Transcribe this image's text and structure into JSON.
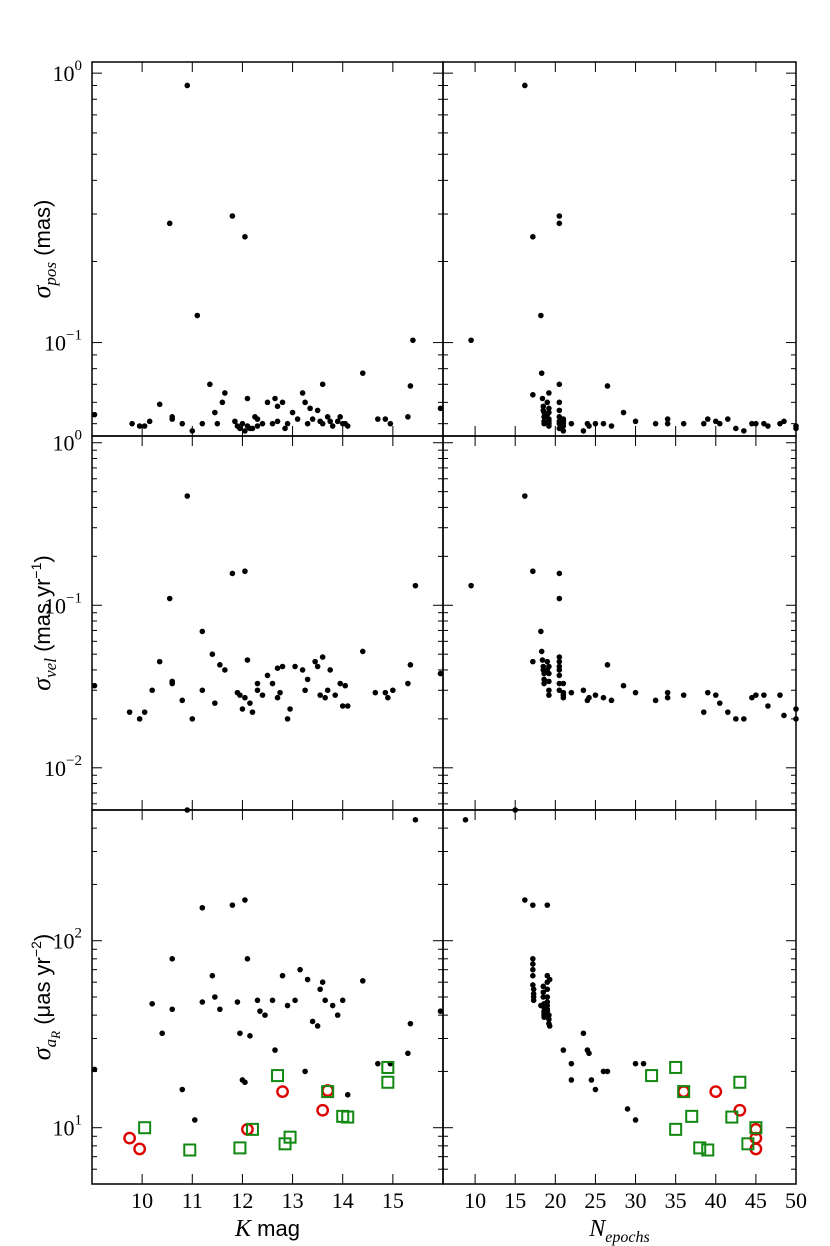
{
  "chart_data": [
    {
      "id": "pos_vs_kmag",
      "type": "scatter",
      "ylabel_symbol": "σ",
      "ylabel_sub": "pos",
      "ylabel_unit": " (mas)",
      "xlabel": "",
      "ylim": [
        0.045,
        1.1
      ],
      "yscale": "log",
      "xlim": [
        9.0,
        16.0
      ],
      "ytick_labels": [
        {
          "value": 1,
          "base": "10",
          "exp": "0"
        },
        {
          "value": 0.1,
          "base": "10",
          "exp": "−1"
        }
      ],
      "series": [
        {
          "style": "dot",
          "color": "#000000",
          "x": [
            9.05,
            9.8,
            9.95,
            10.05,
            10.15,
            10.35,
            10.55,
            10.6,
            10.6,
            10.8,
            10.9,
            11.0,
            11.1,
            11.2,
            11.35,
            11.45,
            11.5,
            11.6,
            11.65,
            11.8,
            11.85,
            11.9,
            11.95,
            12.0,
            12.05,
            12.05,
            12.1,
            12.1,
            12.15,
            12.2,
            12.25,
            12.3,
            12.3,
            12.4,
            12.5,
            12.6,
            12.65,
            12.7,
            12.7,
            12.8,
            12.85,
            12.9,
            13.0,
            13.1,
            13.2,
            13.25,
            13.3,
            13.35,
            13.4,
            13.5,
            13.55,
            13.6,
            13.6,
            13.7,
            13.75,
            13.8,
            13.9,
            13.95,
            14.0,
            14.05,
            14.1,
            14.4,
            14.7,
            14.85,
            14.95,
            15.3,
            15.35,
            15.4,
            15.95
          ],
          "y": [
            0.054,
            0.05,
            0.049,
            0.049,
            0.051,
            0.059,
            0.277,
            0.053,
            0.052,
            0.05,
            0.9,
            0.047,
            0.126,
            0.05,
            0.07,
            0.055,
            0.05,
            0.06,
            0.065,
            0.295,
            0.051,
            0.049,
            0.048,
            0.05,
            0.247,
            0.047,
            0.062,
            0.049,
            0.048,
            0.048,
            0.053,
            0.052,
            0.049,
            0.05,
            0.06,
            0.05,
            0.062,
            0.058,
            0.051,
            0.06,
            0.048,
            0.05,
            0.055,
            0.052,
            0.065,
            0.06,
            0.05,
            0.057,
            0.052,
            0.056,
            0.051,
            0.07,
            0.05,
            0.053,
            0.051,
            0.049,
            0.051,
            0.053,
            0.05,
            0.05,
            0.049,
            0.077,
            0.052,
            0.052,
            0.05,
            0.053,
            0.069,
            0.102,
            0.057
          ]
        }
      ]
    },
    {
      "id": "pos_vs_nepochs",
      "type": "scatter",
      "ylim": [
        0.045,
        1.1
      ],
      "yscale": "log",
      "xlim": [
        6.0,
        50.0
      ],
      "series": [
        {
          "style": "dot",
          "color": "#000000",
          "x": [
            9.5,
            16.2,
            17.2,
            17.2,
            18.2,
            18.3,
            18.4,
            18.5,
            18.5,
            18.6,
            18.6,
            18.6,
            18.6,
            19.0,
            19.0,
            19.2,
            19.2,
            19.2,
            19.2,
            19.2,
            19.2,
            19.2,
            20.5,
            20.5,
            20.5,
            20.5,
            20.5,
            20.5,
            20.5,
            20.5,
            20.5,
            21.0,
            21.0,
            21.0,
            21.0,
            21.0,
            22.0,
            23.5,
            24.0,
            24.2,
            25.0,
            26.0,
            26.5,
            27.0,
            28.5,
            30.0,
            32.5,
            34.0,
            34.0,
            36.0,
            38.5,
            39.0,
            40.0,
            40.5,
            41.5,
            42.5,
            43.5,
            44.5,
            45.0,
            46.0,
            46.5,
            48.0,
            48.5,
            50.0,
            50.0
          ],
          "y": [
            0.102,
            0.9,
            0.247,
            0.064,
            0.126,
            0.077,
            0.062,
            0.058,
            0.056,
            0.055,
            0.053,
            0.051,
            0.05,
            0.06,
            0.054,
            0.065,
            0.057,
            0.055,
            0.052,
            0.051,
            0.05,
            0.049,
            0.295,
            0.277,
            0.07,
            0.06,
            0.056,
            0.053,
            0.051,
            0.05,
            0.048,
            0.052,
            0.051,
            0.05,
            0.049,
            0.047,
            0.05,
            0.047,
            0.05,
            0.049,
            0.05,
            0.05,
            0.069,
            0.049,
            0.055,
            0.051,
            0.05,
            0.05,
            0.052,
            0.05,
            0.05,
            0.052,
            0.051,
            0.05,
            0.052,
            0.048,
            0.047,
            0.05,
            0.05,
            0.05,
            0.049,
            0.05,
            0.051,
            0.049,
            0.048
          ]
        }
      ]
    },
    {
      "id": "vel_vs_kmag",
      "type": "scatter",
      "ylabel_symbol": "σ",
      "ylabel_sub": "vel",
      "ylabel_unit": " (mas yr",
      "ylabel_unit_exp": "−1",
      "ylabel_unit_end": ")",
      "ylim": [
        0.0055,
        1.1
      ],
      "yscale": "log",
      "xlim": [
        9.0,
        16.0
      ],
      "ytick_labels": [
        {
          "value": 1,
          "base": "10",
          "exp": "0"
        },
        {
          "value": 0.1,
          "base": "10",
          "exp": "−1"
        },
        {
          "value": 0.01,
          "base": "10",
          "exp": "−2"
        }
      ],
      "series": [
        {
          "style": "dot",
          "color": "#000000",
          "x": [
            9.05,
            9.75,
            9.95,
            10.05,
            10.2,
            10.35,
            10.55,
            10.6,
            10.6,
            10.8,
            10.9,
            11.0,
            11.2,
            11.2,
            11.4,
            11.45,
            11.55,
            11.65,
            11.8,
            11.9,
            11.95,
            12.0,
            12.05,
            12.05,
            12.1,
            12.15,
            12.2,
            12.3,
            12.3,
            12.4,
            12.5,
            12.6,
            12.7,
            12.7,
            12.75,
            12.8,
            12.9,
            12.95,
            13.05,
            13.2,
            13.25,
            13.3,
            13.45,
            13.5,
            13.55,
            13.6,
            13.65,
            13.7,
            13.75,
            13.85,
            13.95,
            14.0,
            14.05,
            14.1,
            14.4,
            14.65,
            14.85,
            14.9,
            15.0,
            15.3,
            15.35,
            15.45,
            15.95
          ],
          "y": [
            0.032,
            0.022,
            0.02,
            0.022,
            0.03,
            0.045,
            0.11,
            0.034,
            0.033,
            0.026,
            0.47,
            0.02,
            0.069,
            0.03,
            0.05,
            0.025,
            0.043,
            0.04,
            0.157,
            0.029,
            0.028,
            0.023,
            0.162,
            0.027,
            0.046,
            0.025,
            0.022,
            0.033,
            0.03,
            0.028,
            0.037,
            0.033,
            0.041,
            0.027,
            0.029,
            0.042,
            0.02,
            0.023,
            0.042,
            0.04,
            0.03,
            0.035,
            0.045,
            0.042,
            0.028,
            0.048,
            0.027,
            0.03,
            0.04,
            0.028,
            0.033,
            0.024,
            0.032,
            0.024,
            0.052,
            0.029,
            0.029,
            0.027,
            0.03,
            0.033,
            0.043,
            0.132,
            0.038
          ]
        }
      ]
    },
    {
      "id": "vel_vs_nepochs",
      "type": "scatter",
      "ylim": [
        0.0055,
        1.1
      ],
      "yscale": "log",
      "xlim": [
        6.0,
        50.0
      ],
      "series": [
        {
          "style": "dot",
          "color": "#000000",
          "x": [
            9.5,
            16.2,
            17.2,
            17.2,
            18.2,
            18.3,
            18.4,
            18.5,
            18.5,
            18.6,
            18.6,
            18.6,
            19.0,
            19.0,
            19.2,
            19.2,
            19.2,
            19.2,
            19.2,
            20.5,
            20.5,
            20.5,
            20.5,
            20.5,
            20.5,
            20.5,
            20.5,
            20.5,
            21.0,
            21.0,
            21.0,
            21.0,
            22.0,
            23.5,
            24.0,
            24.2,
            25.0,
            26.0,
            26.5,
            27.0,
            28.5,
            30.0,
            32.5,
            34.0,
            34.0,
            36.0,
            38.5,
            39.0,
            40.0,
            40.5,
            41.5,
            42.5,
            43.5,
            44.5,
            45.0,
            46.0,
            46.5,
            48.0,
            48.5,
            50.0,
            50.0
          ],
          "y": [
            0.132,
            0.47,
            0.162,
            0.045,
            0.069,
            0.052,
            0.046,
            0.042,
            0.04,
            0.038,
            0.035,
            0.033,
            0.045,
            0.04,
            0.042,
            0.038,
            0.034,
            0.03,
            0.028,
            0.157,
            0.11,
            0.048,
            0.045,
            0.042,
            0.04,
            0.037,
            0.033,
            0.03,
            0.033,
            0.029,
            0.028,
            0.027,
            0.029,
            0.03,
            0.026,
            0.027,
            0.028,
            0.027,
            0.043,
            0.026,
            0.032,
            0.029,
            0.026,
            0.027,
            0.029,
            0.028,
            0.022,
            0.029,
            0.028,
            0.025,
            0.022,
            0.02,
            0.02,
            0.027,
            0.028,
            0.028,
            0.024,
            0.028,
            0.021,
            0.02,
            0.023
          ]
        }
      ]
    },
    {
      "id": "acc_vs_kmag",
      "type": "scatter",
      "ylabel_symbol": "σ",
      "ylabel_sub": "a",
      "ylabel_subsub": "R",
      "ylabel_unit": " (μas yr",
      "ylabel_unit_exp": "−2",
      "ylabel_unit_end": ")",
      "xlabel_it": "K",
      "xlabel_rest": " mag",
      "ylim": [
        5.0,
        500.0
      ],
      "yscale": "log",
      "xlim": [
        9.0,
        16.0
      ],
      "xtick_labels": [
        "10",
        "11",
        "12",
        "13",
        "14",
        "15"
      ],
      "ytick_labels": [
        {
          "value": 100,
          "base": "10",
          "exp": "2"
        },
        {
          "value": 10,
          "base": "10",
          "exp": "1"
        }
      ],
      "series": [
        {
          "style": "dot",
          "color": "#000000",
          "x": [
            9.05,
            10.2,
            10.4,
            10.6,
            10.6,
            10.8,
            10.9,
            11.05,
            11.2,
            11.2,
            11.4,
            11.45,
            11.55,
            11.8,
            11.9,
            11.95,
            12.0,
            12.05,
            12.05,
            12.1,
            12.15,
            12.3,
            12.35,
            12.45,
            12.6,
            12.65,
            12.8,
            12.9,
            13.05,
            13.15,
            13.25,
            13.3,
            13.4,
            13.5,
            13.55,
            13.6,
            13.65,
            13.8,
            13.9,
            14.0,
            14.1,
            14.4,
            14.7,
            14.95,
            15.3,
            15.35,
            15.45,
            15.95
          ],
          "y": [
            20.5,
            46,
            32,
            80,
            43,
            16,
            500,
            11,
            150,
            47,
            65,
            50,
            43,
            155,
            47,
            32,
            18,
            17.5,
            165,
            80,
            31,
            48,
            42,
            40,
            48,
            26,
            65,
            45,
            48,
            70,
            20,
            62,
            37,
            35,
            55,
            60,
            48,
            45,
            40,
            48,
            15,
            61,
            22,
            22,
            25,
            36,
            443,
            42
          ]
        },
        {
          "name": "",
          "style": "open-circle",
          "color": "#dd0000",
          "x": [
            9.75,
            9.95,
            12.1,
            12.8,
            13.6,
            13.7
          ],
          "y": [
            8.8,
            7.7,
            9.8,
            15.6,
            12.4,
            15.8
          ]
        },
        {
          "name": "",
          "style": "open-square",
          "color": "#118811",
          "x": [
            10.05,
            10.95,
            11.95,
            12.2,
            12.7,
            12.85,
            12.95,
            13.7,
            14.0,
            14.1,
            14.9,
            14.9
          ],
          "y": [
            10.0,
            7.6,
            7.8,
            9.8,
            19.0,
            8.2,
            8.9,
            15.6,
            11.5,
            11.4,
            21.0,
            17.5
          ]
        }
      ]
    },
    {
      "id": "acc_vs_nepochs",
      "type": "scatter",
      "xlabel_base": "N",
      "xlabel_sub": "epochs",
      "ylim": [
        5.0,
        500.0
      ],
      "yscale": "log",
      "xlim": [
        6.0,
        50.0
      ],
      "xtick_labels": [
        "10",
        "15",
        "20",
        "25",
        "30",
        "35",
        "40",
        "45",
        "50"
      ],
      "series": [
        {
          "style": "dot",
          "color": "#000000",
          "x": [
            8.8,
            15.0,
            16.2,
            17.2,
            17.2,
            17.2,
            17.2,
            17.2,
            17.2,
            17.3,
            17.3,
            17.3,
            17.3,
            18.2,
            18.5,
            18.5,
            18.5,
            18.6,
            18.6,
            18.6,
            18.6,
            18.6,
            18.6,
            19.0,
            19.0,
            19.0,
            19.0,
            19.0,
            19.0,
            19.0,
            19.0,
            19.0,
            19.2,
            19.2,
            19.2,
            19.3,
            19.3,
            21.0,
            22.0,
            22.0,
            23.5,
            24.0,
            24.2,
            24.5,
            25.0,
            26.0,
            26.5,
            29.0,
            30.0,
            30.0,
            31.0
          ],
          "y": [
            443,
            500,
            165,
            155,
            80,
            75,
            70,
            65,
            58,
            55,
            52,
            50,
            48,
            45,
            57,
            53,
            50,
            46,
            44,
            42,
            41,
            40,
            39,
            155,
            65,
            60,
            55,
            50,
            47,
            45,
            43,
            42,
            38,
            36,
            40,
            35,
            62,
            26,
            22,
            18,
            32,
            26,
            25,
            18,
            16,
            20,
            20,
            12.6,
            11,
            22,
            22
          ]
        },
        {
          "name": "",
          "style": "open-circle",
          "color": "#dd0000",
          "x": [
            36.0,
            40.0,
            43.0,
            45.0,
            45.0,
            45.0
          ],
          "y": [
            15.6,
            15.6,
            12.4,
            9.8,
            8.8,
            7.7
          ]
        },
        {
          "name": "",
          "style": "open-square",
          "color": "#118811",
          "x": [
            32.0,
            35.0,
            35.0,
            36.0,
            37.0,
            38.0,
            39.0,
            42.0,
            43.0,
            44.0,
            45.0
          ],
          "y": [
            19.0,
            21.0,
            9.8,
            15.6,
            11.5,
            7.8,
            7.6,
            11.4,
            17.5,
            8.2,
            10.0
          ]
        }
      ]
    }
  ]
}
